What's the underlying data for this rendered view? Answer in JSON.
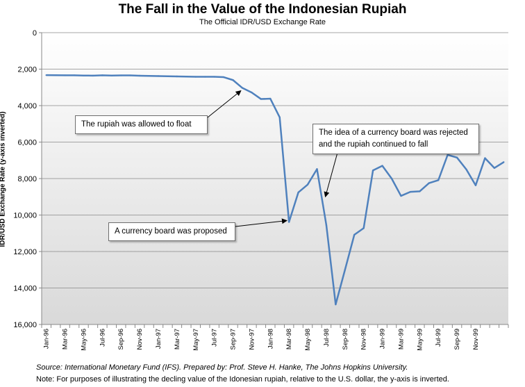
{
  "chart_data": {
    "type": "line",
    "title": "The Fall in the Value of the Indonesian Rupiah",
    "subtitle": "The Official IDR/USD Exchange Rate",
    "ylabel": "IDR/USD Exchange Rate (y-axis inverted)",
    "xlabel": "",
    "ylim": [
      0,
      16000
    ],
    "y_inverted": true,
    "y_ticks": [
      "0",
      "2,000",
      "4,000",
      "6,000",
      "8,000",
      "10,000",
      "12,000",
      "14,000",
      "16,000"
    ],
    "x_tick_labels": [
      "Jan-96",
      "Mar-96",
      "May-96",
      "Jul-96",
      "Sep-96",
      "Nov-96",
      "Jan-97",
      "Mar-97",
      "May-97",
      "Jul-97",
      "Sep-97",
      "Nov-97",
      "Jan-98",
      "Mar-98",
      "May-98",
      "Jul-98",
      "Sep-98",
      "Nov-98",
      "Jan-99",
      "Mar-99",
      "May-99",
      "Jul-99",
      "Sep-99",
      "Nov-99"
    ],
    "grid": true,
    "series": [
      {
        "values": [
          2330,
          2335,
          2340,
          2340,
          2350,
          2355,
          2340,
          2350,
          2345,
          2345,
          2360,
          2370,
          2380,
          2390,
          2400,
          2410,
          2420,
          2420,
          2420,
          2440,
          2600,
          3030,
          3280,
          3640,
          3620,
          4640,
          10380,
          8760,
          8330,
          7480,
          10550,
          14900,
          13000,
          11080,
          10720,
          7550,
          7300,
          8000,
          8950,
          8730,
          8700,
          8250,
          8090,
          6700,
          6850,
          7500,
          8370,
          6880,
          7420,
          7100
        ],
        "color": "#4f81bd"
      }
    ],
    "annotations": [
      {
        "text": "The rupiah was allowed to float",
        "lines": [
          "The rupiah was allowed to float"
        ]
      },
      {
        "text": "The idea of a currency  board was rejected and the rupiah continued to fall",
        "lines": [
          "The idea of a currency  board was rejected",
          "and the rupiah continued to fall"
        ]
      },
      {
        "text": "A currency board was proposed",
        "lines": [
          "A currency board was proposed"
        ]
      }
    ]
  },
  "footer": {
    "source": "Source: International Monetary Fund (IFS). Prepared by: Prof. Steve H. Hanke, The Johns Hopkins University.",
    "note": "Note:  For purposes of illustrating the  decling value of the Idonesian rupiah, relative to the U.S. dollar, the y-axis is inverted."
  }
}
